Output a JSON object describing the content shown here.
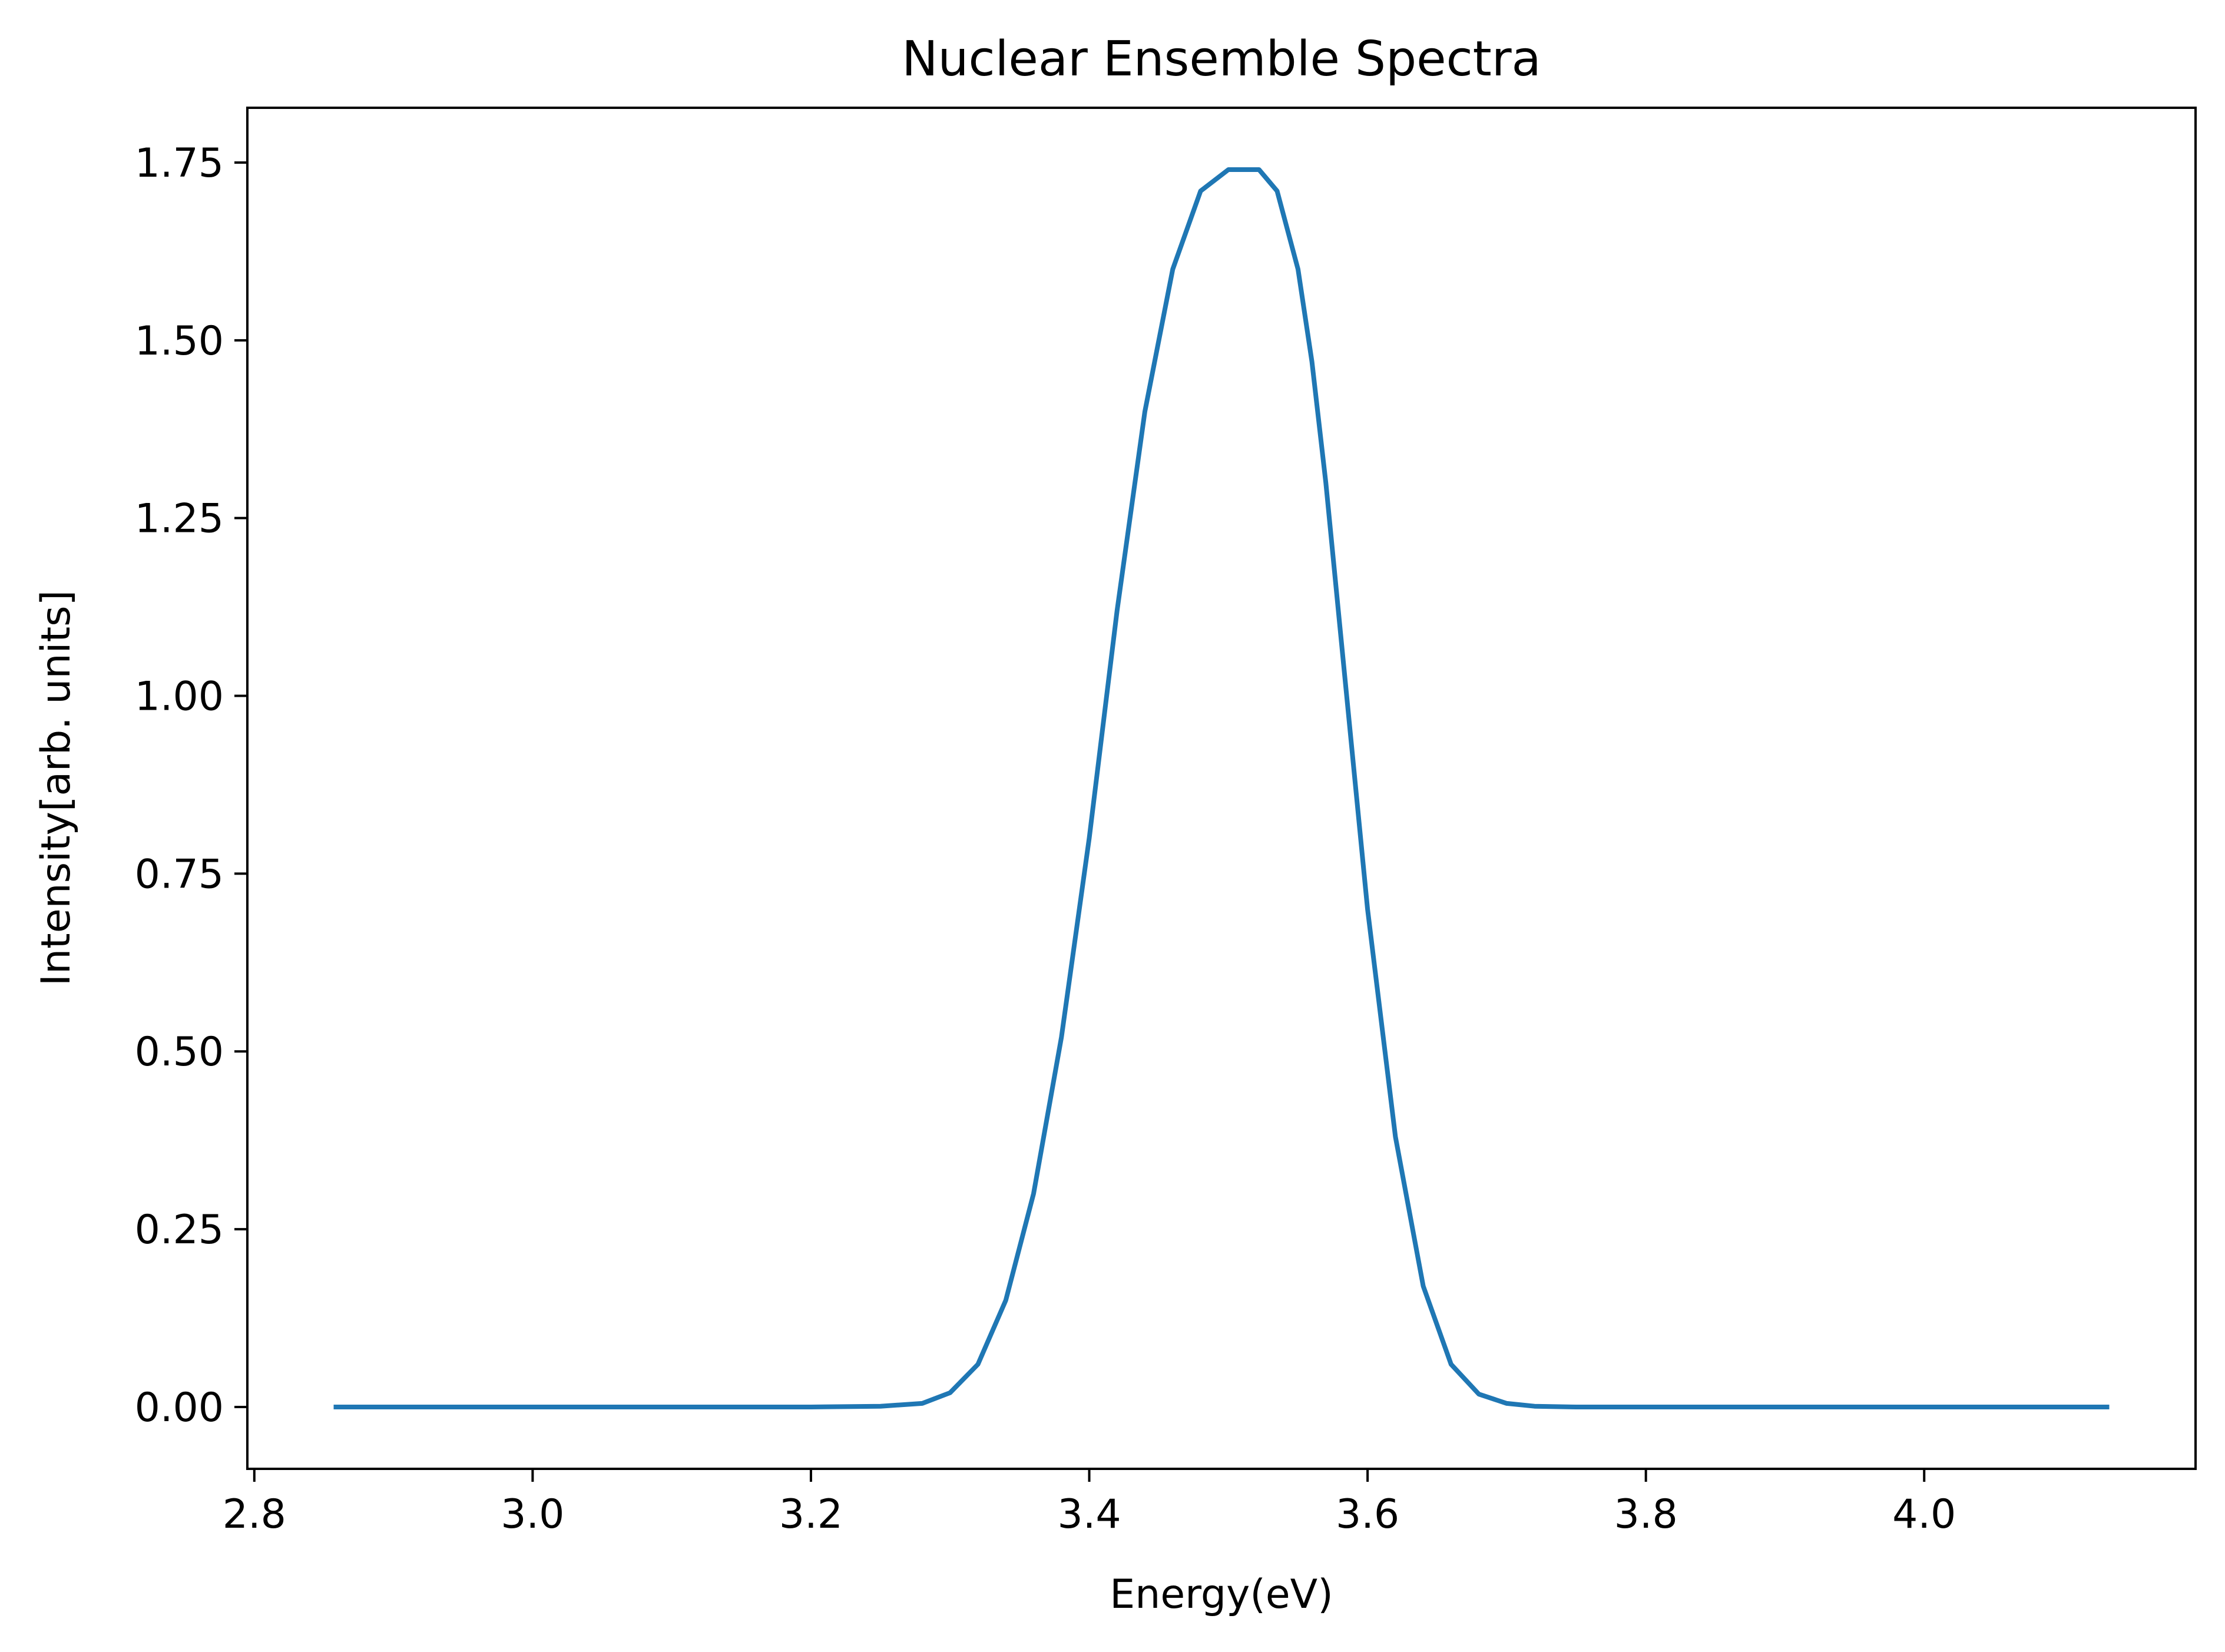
{
  "chart_data": {
    "type": "line",
    "title": "Nuclear Ensemble Spectra",
    "xlabel": "Energy(eV)",
    "ylabel": "Intensity[arb. units]",
    "xlim": [
      2.795,
      4.195
    ],
    "ylim": [
      -0.087,
      1.827
    ],
    "x_ticks": [
      {
        "value": 2.8,
        "label": "2.8"
      },
      {
        "value": 3.0,
        "label": "3.0"
      },
      {
        "value": 3.2,
        "label": "3.2"
      },
      {
        "value": 3.4,
        "label": "3.4"
      },
      {
        "value": 3.6,
        "label": "3.6"
      },
      {
        "value": 3.8,
        "label": "3.8"
      },
      {
        "value": 4.0,
        "label": "4.0"
      }
    ],
    "y_ticks": [
      {
        "value": 0.0,
        "label": "0.00"
      },
      {
        "value": 0.25,
        "label": "0.25"
      },
      {
        "value": 0.5,
        "label": "0.50"
      },
      {
        "value": 0.75,
        "label": "0.75"
      },
      {
        "value": 1.0,
        "label": "1.00"
      },
      {
        "value": 1.25,
        "label": "1.25"
      },
      {
        "value": 1.5,
        "label": "1.50"
      },
      {
        "value": 1.75,
        "label": "1.75"
      }
    ],
    "grid": false,
    "series": [
      {
        "color": "#1f77b4",
        "x": [
          2.857,
          3.0,
          3.1,
          3.2,
          3.25,
          3.28,
          3.3,
          3.32,
          3.34,
          3.36,
          3.38,
          3.4,
          3.42,
          3.44,
          3.46,
          3.48,
          3.5,
          3.51,
          3.522,
          3.535,
          3.55,
          3.56,
          3.57,
          3.58,
          3.6,
          3.62,
          3.64,
          3.66,
          3.68,
          3.7,
          3.72,
          3.75,
          3.8,
          4.0,
          4.133
        ],
        "y": [
          0.0,
          0.0,
          0.0,
          0.0,
          0.001,
          0.005,
          0.02,
          0.06,
          0.15,
          0.3,
          0.52,
          0.8,
          1.12,
          1.4,
          1.6,
          1.71,
          1.74,
          1.74,
          1.74,
          1.71,
          1.6,
          1.47,
          1.3,
          1.1,
          0.7,
          0.38,
          0.17,
          0.06,
          0.018,
          0.005,
          0.001,
          0.0,
          0.0,
          0.0,
          0.0
        ]
      }
    ]
  }
}
